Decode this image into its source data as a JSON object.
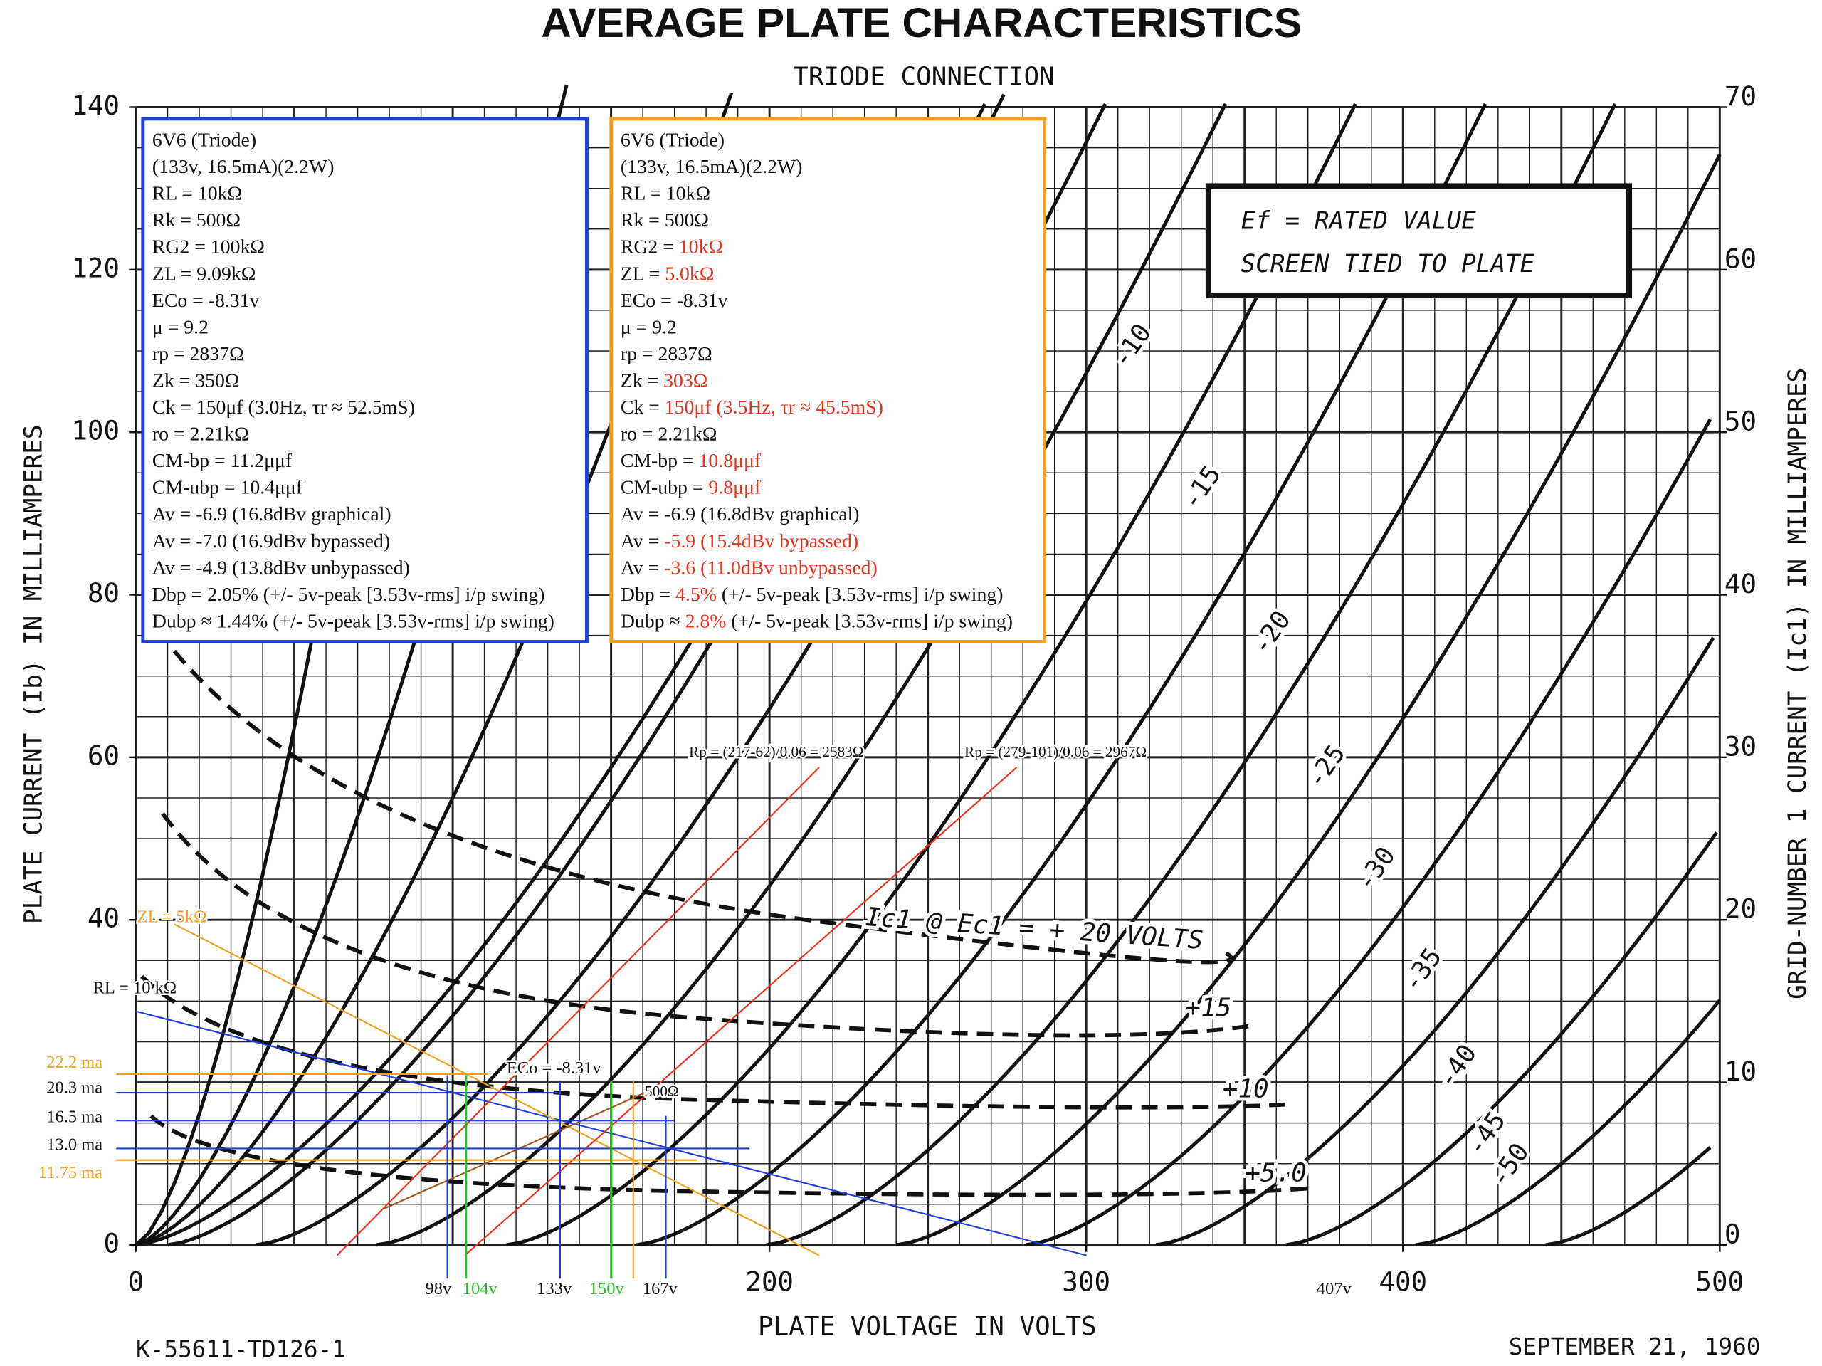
{
  "title": "AVERAGE PLATE CHARACTERISTICS",
  "subtitle": "TRIODE CONNECTION",
  "plate_voltage_axis": {
    "label": "PLATE VOLTAGE IN VOLTS",
    "range": [
      0,
      500
    ],
    "ticks": [
      0,
      200,
      300,
      400,
      500
    ]
  },
  "plate_current_axis": {
    "label": "PLATE CURRENT (Ib) IN MILLIAMPERES",
    "range": [
      0,
      140
    ],
    "ticks": [
      0,
      40,
      60,
      80,
      100,
      120,
      140
    ]
  },
  "grid_current_axis": {
    "label": "GRID-NUMBER 1 CURRENT (Ic1) IN MILLIAMPERES",
    "range": [
      0,
      70
    ],
    "ticks": [
      0,
      10,
      20,
      30,
      40,
      50,
      60,
      70
    ]
  },
  "conditions": [
    "Ef = RATED VALUE",
    "SCREEN TIED TO PLATE"
  ],
  "curve_labels": [
    "-10",
    "-15",
    "-20",
    "-25",
    "-30",
    "-35",
    "-40",
    "-45",
    "-50"
  ],
  "grid_current_labels": [
    "Ic1 @ Ec1 = + 20 VOLTS",
    "+15",
    "+10",
    "+5.0"
  ],
  "changed_color": "#e8321e",
  "boxes": [
    {
      "color": "#1f3fd6",
      "lines": [
        [
          "6V6 (Triode)"
        ],
        [
          "(133v, 16.5mA)(2.2W)"
        ],
        [
          "RL = 10kΩ"
        ],
        [
          "Rk = 500Ω"
        ],
        [
          "RG2 = 100kΩ"
        ],
        [
          "ZL = 9.09kΩ"
        ],
        [
          "ECo = -8.31v"
        ],
        [
          "μ = 9.2"
        ],
        [
          "rp = 2837Ω"
        ],
        [
          "Zk = 350Ω"
        ],
        [
          "Ck = 150μf (3.0Hz, τr ≈ 52.5mS)"
        ],
        [
          "ro = 2.21kΩ"
        ],
        [
          "CM-bp = 11.2μμf"
        ],
        [
          "CM-ubp = 10.4μμf"
        ],
        [
          "Av = -6.9 (16.8dBv graphical)"
        ],
        [
          "Av = -7.0 (16.9dBv bypassed)"
        ],
        [
          "Av = -4.9 (13.8dBv unbypassed)"
        ],
        [
          "Dbp = 2.05% (+/- 5v-peak [3.53v-rms] i/p swing)"
        ],
        [
          "Dubp ≈ 1.44% (+/- 5v-peak [3.53v-rms] i/p swing)"
        ]
      ]
    },
    {
      "color": "#f0a020",
      "lines": [
        [
          "6V6 (Triode)"
        ],
        [
          "(133v, 16.5mA)(2.2W)"
        ],
        [
          "RL = 10kΩ"
        ],
        [
          "Rk = 500Ω"
        ],
        [
          "RG2 = ",
          "10kΩ"
        ],
        [
          "ZL = ",
          "5.0kΩ"
        ],
        [
          "ECo = -8.31v"
        ],
        [
          "μ = 9.2"
        ],
        [
          "rp = 2837Ω"
        ],
        [
          "Zk = ",
          "303Ω"
        ],
        [
          "Ck = ",
          "150μf (3.5Hz, τr ≈ 45.5mS)"
        ],
        [
          "ro = 2.21kΩ"
        ],
        [
          "CM-bp = ",
          "10.8μμf"
        ],
        [
          "CM-ubp = ",
          "9.8μμf"
        ],
        [
          "Av = -6.9 (16.8dBv graphical)"
        ],
        [
          "Av = ",
          "-5.9 (15.4dBv bypassed)"
        ],
        [
          "Av = ",
          "-3.6 (11.0dBv unbypassed)"
        ],
        [
          "Dbp = ",
          "4.5%",
          " (+/- 5v-peak [3.53v-rms] i/p swing)"
        ],
        [
          "Dubp ≈ ",
          "2.8%",
          " (+/- 5v-peak [3.53v-rms] i/p swing)"
        ]
      ]
    }
  ],
  "annotations": [
    "ZL = 5kΩ",
    "RL = 10 kΩ",
    "22.2 ma",
    "20.3 ma",
    "16.5 ma",
    "13.0 ma",
    "11.75 ma",
    "ECo = -8.31v",
    "500Ω",
    "98v",
    "104v",
    "133v",
    "150v",
    "167v",
    "407v",
    "Rp = (217-62)/0.06 = 2583Ω",
    "Rp = (279-101)/0.06 = 2967Ω"
  ],
  "drawing_id": "K-55611-TD126-1",
  "date": "SEPTEMBER 21, 1960"
}
